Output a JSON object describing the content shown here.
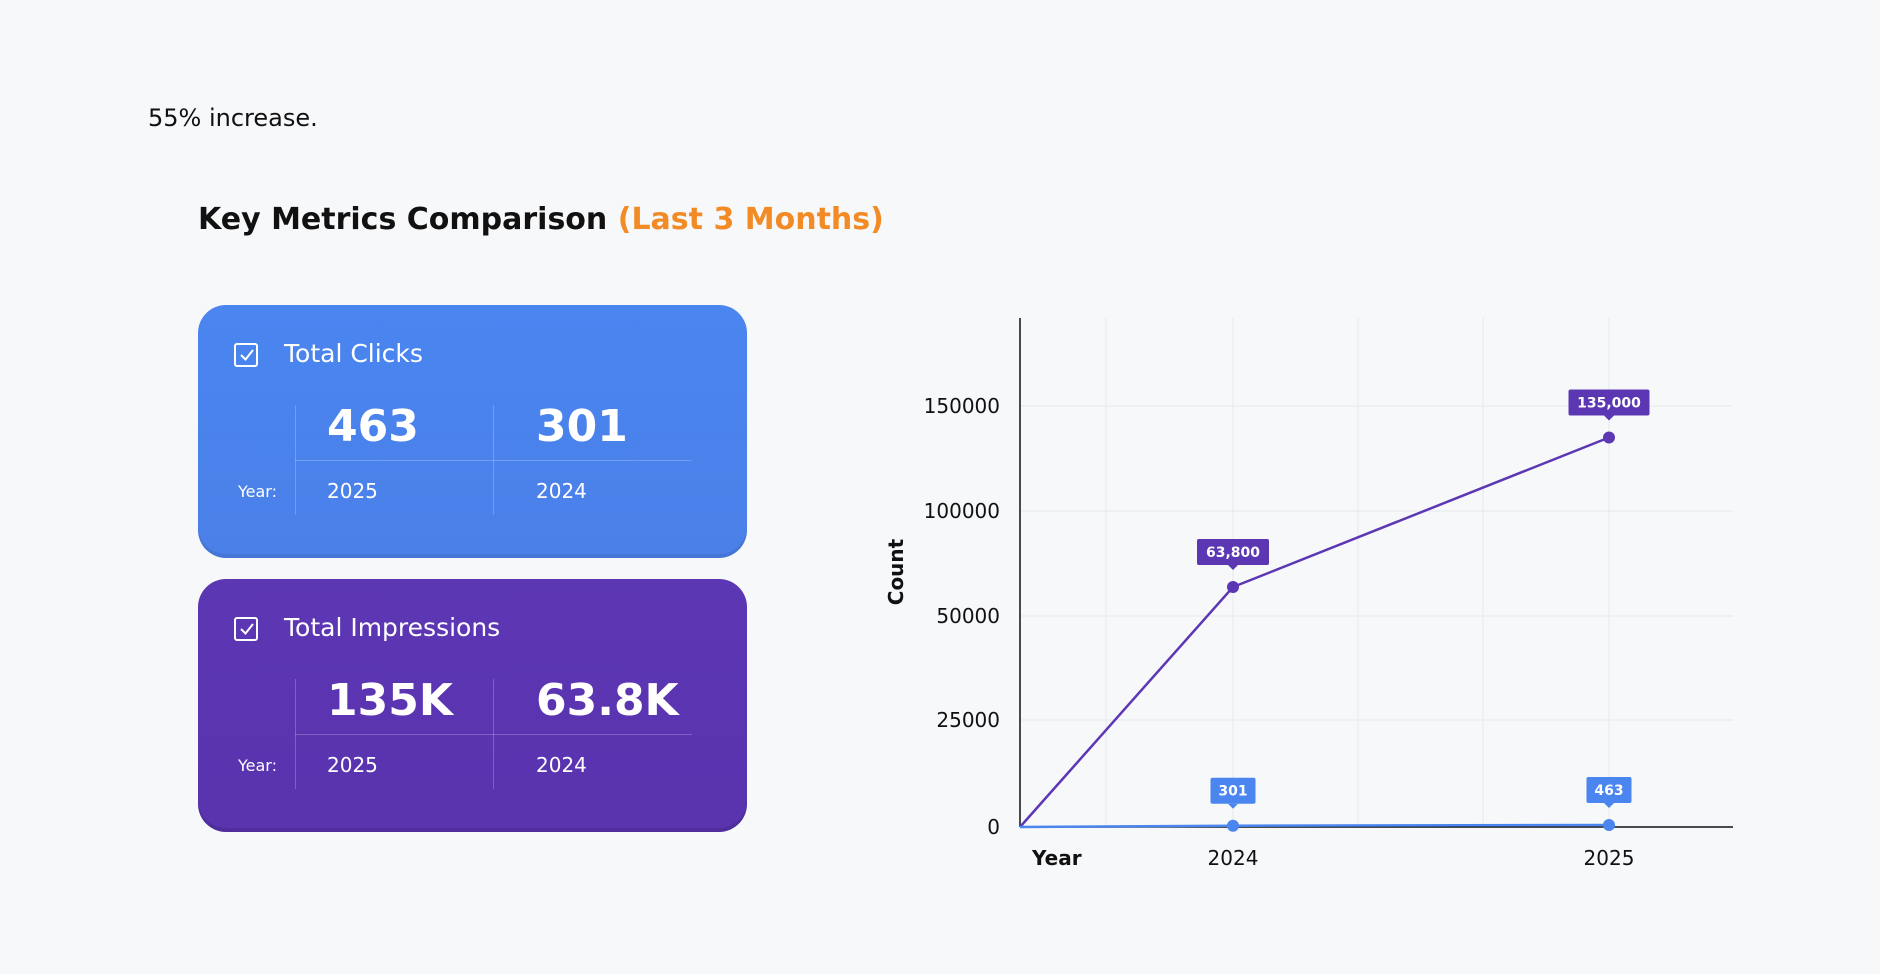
{
  "intro_text": "55% increase.",
  "title": {
    "main": "Key Metrics Comparison",
    "accent": "(Last 3 Months)"
  },
  "colors": {
    "clicks": "#4a85f0",
    "impressions": "#5c37b4",
    "accent": "#f28a25"
  },
  "cards": [
    {
      "label": "Total Clicks",
      "icon": "checkbox-checked-icon",
      "values": [
        "463",
        "301"
      ],
      "years": [
        "2025",
        "2024"
      ],
      "year_label": "Year:"
    },
    {
      "label": "Total Impressions",
      "icon": "checkbox-checked-icon",
      "values": [
        "135K",
        "63.8K"
      ],
      "years": [
        "2025",
        "2024"
      ],
      "year_label": "Year:"
    }
  ],
  "chart_data": {
    "type": "line",
    "xlabel": "Year",
    "ylabel": "Count",
    "categories": [
      "2024",
      "2025"
    ],
    "yticks": [
      0,
      25000,
      50000,
      100000,
      150000
    ],
    "grid": true,
    "series": [
      {
        "color": "#5c37b4",
        "values": [
          63800,
          135000
        ],
        "data_labels": [
          "63,800",
          "135,000"
        ]
      },
      {
        "color": "#4a85f0",
        "values": [
          301,
          463
        ],
        "data_labels": [
          "301",
          "463"
        ]
      }
    ]
  }
}
